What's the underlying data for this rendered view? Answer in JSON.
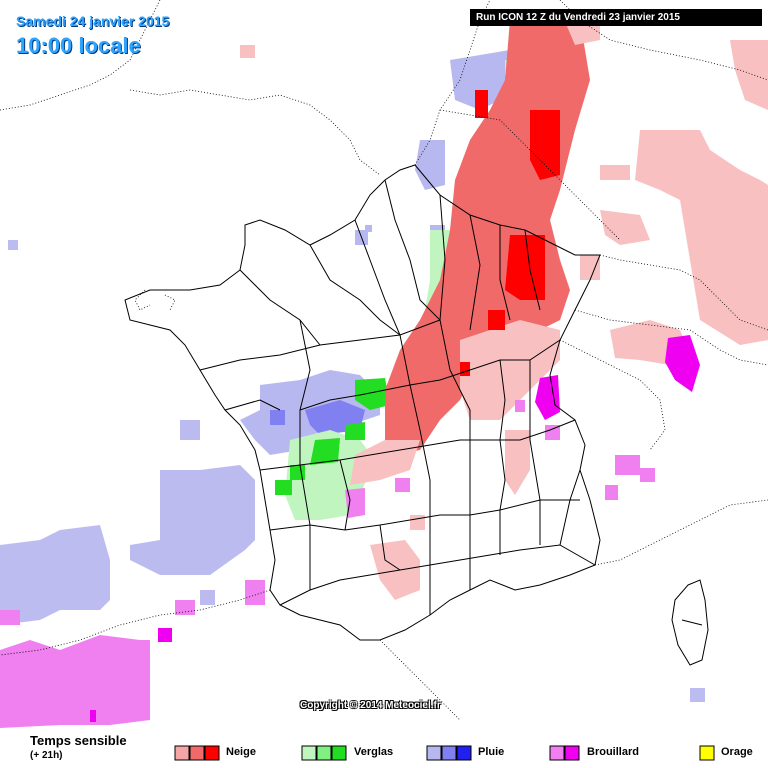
{
  "header": {
    "date": "Samedi 24 janvier 2015",
    "time": "10:00 locale",
    "run": "Run ICON 12 Z du Vendredi 23 janvier 2015"
  },
  "copyright": "Copyright © 2014 Meteociel.fr",
  "legend": {
    "title": "Temps sensible",
    "subtitle": "(+ 21h)",
    "items": [
      {
        "label": "Neige",
        "colors": [
          "#f4a6a6",
          "#f06a6a",
          "#ff0000"
        ]
      },
      {
        "label": "Verglas",
        "colors": [
          "#c0f5c0",
          "#80f080",
          "#22dd22"
        ]
      },
      {
        "label": "Pluie",
        "colors": [
          "#b8b8f0",
          "#8080f0",
          "#2020f0"
        ]
      },
      {
        "label": "Brouillard",
        "colors": [
          "#f080f0",
          "#f000f0"
        ]
      },
      {
        "label": "Orage",
        "colors": [
          "#ffff00"
        ]
      }
    ]
  },
  "colors": {
    "snow_light": "#f8c0c0",
    "snow_mid": "#f06a6a",
    "snow_heavy": "#ff0000",
    "ice_light": "#c0f5c0",
    "ice_heavy": "#22dd22",
    "rain_light": "#b8b8f0",
    "rain_mid": "#8080f0",
    "fog_light": "#f080f0",
    "fog_heavy": "#f000f0"
  }
}
